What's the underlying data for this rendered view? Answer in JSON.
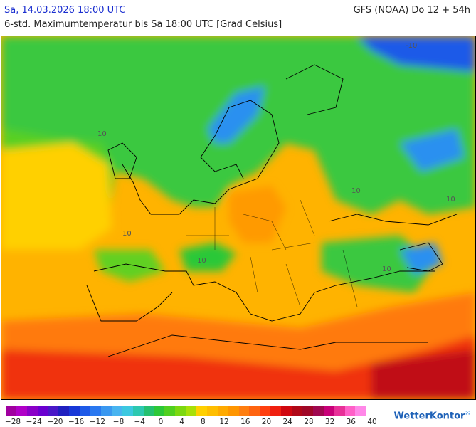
{
  "header": {
    "datetime": "Sa, 14.03.2026 18:00 UTC",
    "model": "GFS (NOAA) Do 12 + 54h",
    "subtitle": "6-std. Maximumtemperatur bis Sa 18:00 UTC [Grad Celsius]"
  },
  "map": {
    "contour_labels": [
      "10",
      "10",
      "10",
      "10",
      "10",
      "10",
      "-10"
    ]
  },
  "legend": {
    "colors": [
      "#a000a0",
      "#b000c8",
      "#8a00c8",
      "#6a00d0",
      "#4a18c8",
      "#2020c0",
      "#1838d8",
      "#1e5ae8",
      "#2a78f0",
      "#3a98f0",
      "#48b4f0",
      "#3cc8e0",
      "#2cc8b0",
      "#24c070",
      "#2cc838",
      "#50d020",
      "#7cd810",
      "#a8e008",
      "#ffd000",
      "#ffbe00",
      "#ffaa00",
      "#ff9600",
      "#ff7e10",
      "#ff6410",
      "#ff4010",
      "#f02010",
      "#d00810",
      "#b00818",
      "#a00828",
      "#a00850",
      "#c80078",
      "#e83098",
      "#ff60c8",
      "#ff88e8"
    ],
    "ticks": [
      "−28",
      "−24",
      "−20",
      "−16",
      "−12",
      "−8",
      "−4",
      "0",
      "4",
      "8",
      "12",
      "16",
      "20",
      "24",
      "28",
      "32",
      "36",
      "40"
    ]
  },
  "brand": "WetterKontor"
}
